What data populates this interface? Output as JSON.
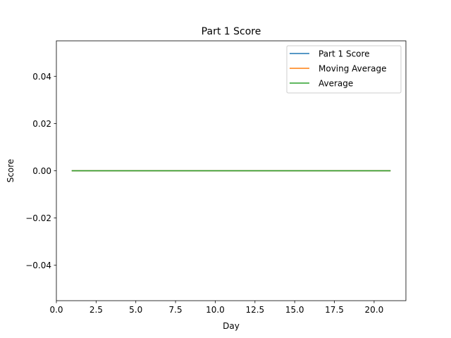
{
  "chart_data": {
    "type": "line",
    "title": "Part 1 Score",
    "xlabel": "Day",
    "ylabel": "Score",
    "xlim": [
      0,
      22.0
    ],
    "ylim": [
      -0.055,
      0.055
    ],
    "xticks": [
      0.0,
      2.5,
      5.0,
      7.5,
      10.0,
      12.5,
      15.0,
      17.5,
      20.0
    ],
    "xtick_labels": [
      "0.0",
      "2.5",
      "5.0",
      "7.5",
      "10.0",
      "12.5",
      "15.0",
      "17.5",
      "20.0"
    ],
    "yticks": [
      -0.04,
      -0.02,
      0.0,
      0.02,
      0.04
    ],
    "ytick_labels": [
      "−0.04",
      "−0.02",
      "0.00",
      "0.02",
      "0.04"
    ],
    "grid": false,
    "legend_position": "upper right",
    "x": [
      1,
      2,
      3,
      4,
      5,
      6,
      7,
      8,
      9,
      10,
      11,
      12,
      13,
      14,
      15,
      16,
      17,
      18,
      19,
      20,
      21
    ],
    "series": [
      {
        "name": "Part 1 Score",
        "color": "#1f77b4",
        "values": [
          0,
          0,
          0,
          0,
          0,
          0,
          0,
          0,
          0,
          0,
          0,
          0,
          0,
          0,
          0,
          0,
          0,
          0,
          0,
          0,
          0
        ]
      },
      {
        "name": "Moving Average",
        "color": "#ff7f0e",
        "values": [
          0,
          0,
          0,
          0,
          0,
          0,
          0,
          0,
          0,
          0,
          0,
          0,
          0,
          0,
          0,
          0,
          0,
          0,
          0,
          0,
          0
        ]
      },
      {
        "name": "Average",
        "color": "#2ca02c",
        "values": [
          0,
          0,
          0,
          0,
          0,
          0,
          0,
          0,
          0,
          0,
          0,
          0,
          0,
          0,
          0,
          0,
          0,
          0,
          0,
          0,
          0
        ]
      }
    ]
  }
}
